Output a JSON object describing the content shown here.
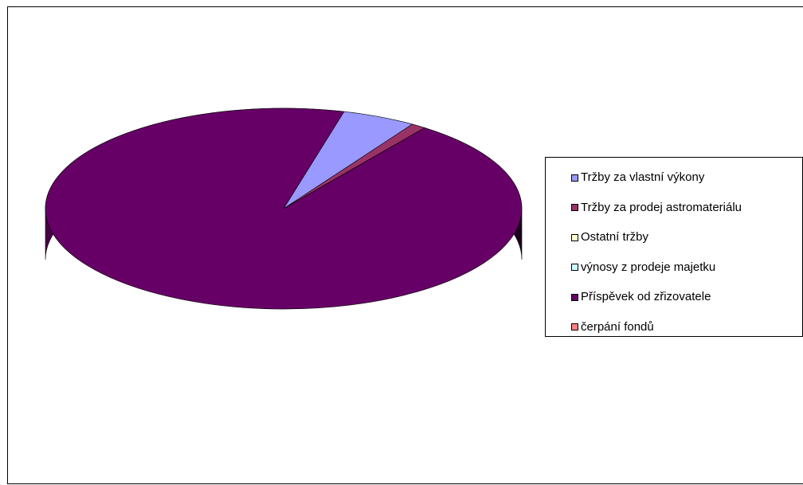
{
  "chart_data": {
    "type": "pie",
    "three_d": true,
    "title": "",
    "legend_position": "right",
    "slices": [
      {
        "label": "Tržby za vlastní výkony",
        "value": 5.0,
        "color": "#9999FF"
      },
      {
        "label": "Tržby za prodej astromateriálu",
        "value": 1.0,
        "color": "#993366"
      },
      {
        "label": "Ostatní tržby",
        "value": 0,
        "color": "#FFFFCC"
      },
      {
        "label": "výnosy z prodeje majetku",
        "value": 0,
        "color": "#CCFFFF"
      },
      {
        "label": "Příspěvek od zřizovatele",
        "value": 94.0,
        "color": "#660066"
      },
      {
        "label": "čerpání fondů",
        "value": 0,
        "color": "#FF8080"
      }
    ]
  }
}
